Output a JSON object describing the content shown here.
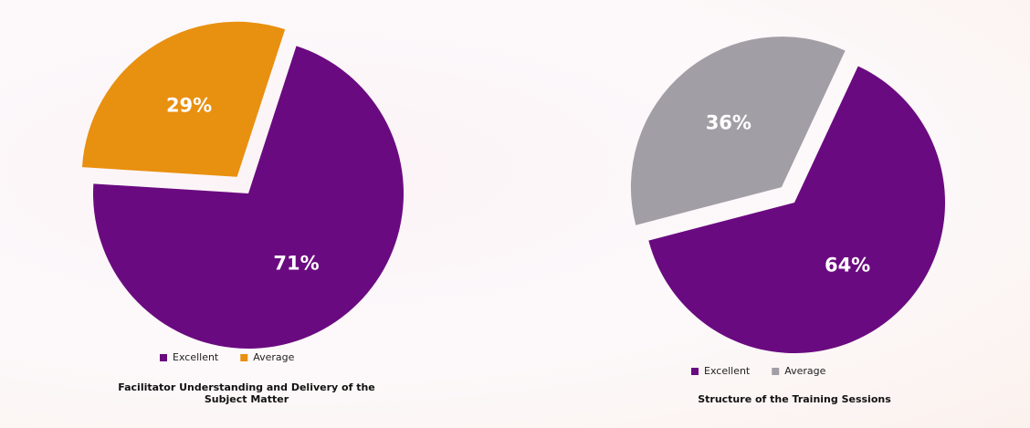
{
  "chart_data": [
    {
      "type": "pie",
      "title": "Facilitator Understanding and Delivery of the Subject Matter",
      "categories": [
        "Excellent",
        "Average"
      ],
      "values": [
        71,
        29
      ],
      "value_labels": [
        "71%",
        "29%"
      ],
      "colors": [
        "#6a0a80",
        "#e8900f"
      ],
      "legend": "bottom"
    },
    {
      "type": "pie",
      "title": "Structure of the Training Sessions",
      "categories": [
        "Excellent",
        "Average"
      ],
      "values": [
        64,
        36
      ],
      "value_labels": [
        "64%",
        "36%"
      ],
      "colors": [
        "#6a0a80",
        "#a29ea5"
      ],
      "legend": "bottom"
    }
  ]
}
